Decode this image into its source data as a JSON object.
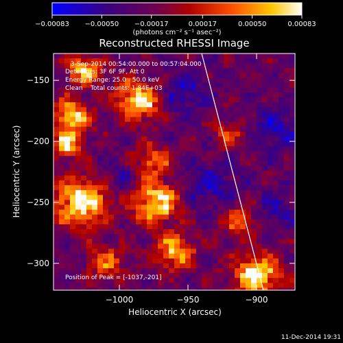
{
  "chart_data": {
    "type": "heatmap",
    "title": "Reconstructed RHESSI Image",
    "xlabel": "Heliocentric X (arcsec)",
    "ylabel": "Heliocentric Y (arcsec)",
    "xlim": [
      -1048,
      -872
    ],
    "ylim": [
      -322,
      -128
    ],
    "x_ticks": [
      -1000,
      -950,
      -900
    ],
    "x_tick_labels": [
      "−1000",
      "−950",
      "−900"
    ],
    "y_ticks": [
      -150,
      -200,
      -250,
      -300
    ],
    "y_tick_labels": [
      "−150",
      "−200",
      "−250",
      "−300"
    ],
    "colorbar": {
      "range": [
        -0.00083,
        0.00083
      ],
      "ticks": [
        -0.00083,
        -0.0005,
        -0.00017,
        0.00017,
        0.0005,
        0.00083
      ],
      "tick_labels": [
        "−0.00083",
        "−0.00050",
        "−0.00017",
        "0.00017",
        "0.00050",
        "0.00083"
      ],
      "units_label": "(photons cm⁻² s⁻¹ asec⁻²)",
      "colors": [
        "#0000ff",
        "#3a0070",
        "#7a0040",
        "#c00000",
        "#ff6000",
        "#ffd000",
        "#ffffff"
      ]
    },
    "annotations": [
      "3-Sep-2014 00:54:00.000 to 00:57:04.000",
      "Detectors: 3F 6F 9F, Att 0",
      "Energy Range: 25.0 - 50.0 keV",
      "Clean    Total counts: 1.84E+03"
    ],
    "peak_label": "Position of Peak = [-1037,-201]",
    "limb_line": {
      "x": [
        -940,
        -895
      ],
      "y": [
        -128,
        -322
      ]
    },
    "bright_sources": [
      {
        "x": -1028,
        "y": -250,
        "s": 14,
        "a": 1.0
      },
      {
        "x": -973,
        "y": -250,
        "s": 12,
        "a": 1.0
      },
      {
        "x": -960,
        "y": -290,
        "s": 10,
        "a": 0.8
      },
      {
        "x": -985,
        "y": -166,
        "s": 12,
        "a": 0.95
      },
      {
        "x": -1035,
        "y": -180,
        "s": 10,
        "a": 0.85
      },
      {
        "x": -1038,
        "y": -203,
        "s": 7,
        "a": 0.95
      },
      {
        "x": -975,
        "y": -215,
        "s": 9,
        "a": 0.6
      },
      {
        "x": -900,
        "y": -310,
        "s": 12,
        "a": 1.0
      },
      {
        "x": -912,
        "y": -265,
        "s": 9,
        "a": 0.55
      },
      {
        "x": -1010,
        "y": -300,
        "s": 10,
        "a": 0.55
      },
      {
        "x": -920,
        "y": -195,
        "s": 8,
        "a": 0.45
      },
      {
        "x": -1025,
        "y": -142,
        "s": 9,
        "a": 0.8
      }
    ],
    "negative_regions": [
      {
        "x": -955,
        "y": -160,
        "s": 12,
        "a": 0.6
      },
      {
        "x": -935,
        "y": -235,
        "s": 14,
        "a": 0.55
      },
      {
        "x": -885,
        "y": -190,
        "s": 12,
        "a": 0.6
      },
      {
        "x": -885,
        "y": -255,
        "s": 10,
        "a": 0.5
      },
      {
        "x": -1000,
        "y": -230,
        "s": 9,
        "a": 0.4
      }
    ]
  },
  "timestamp": "11-Dec-2014 19:31"
}
